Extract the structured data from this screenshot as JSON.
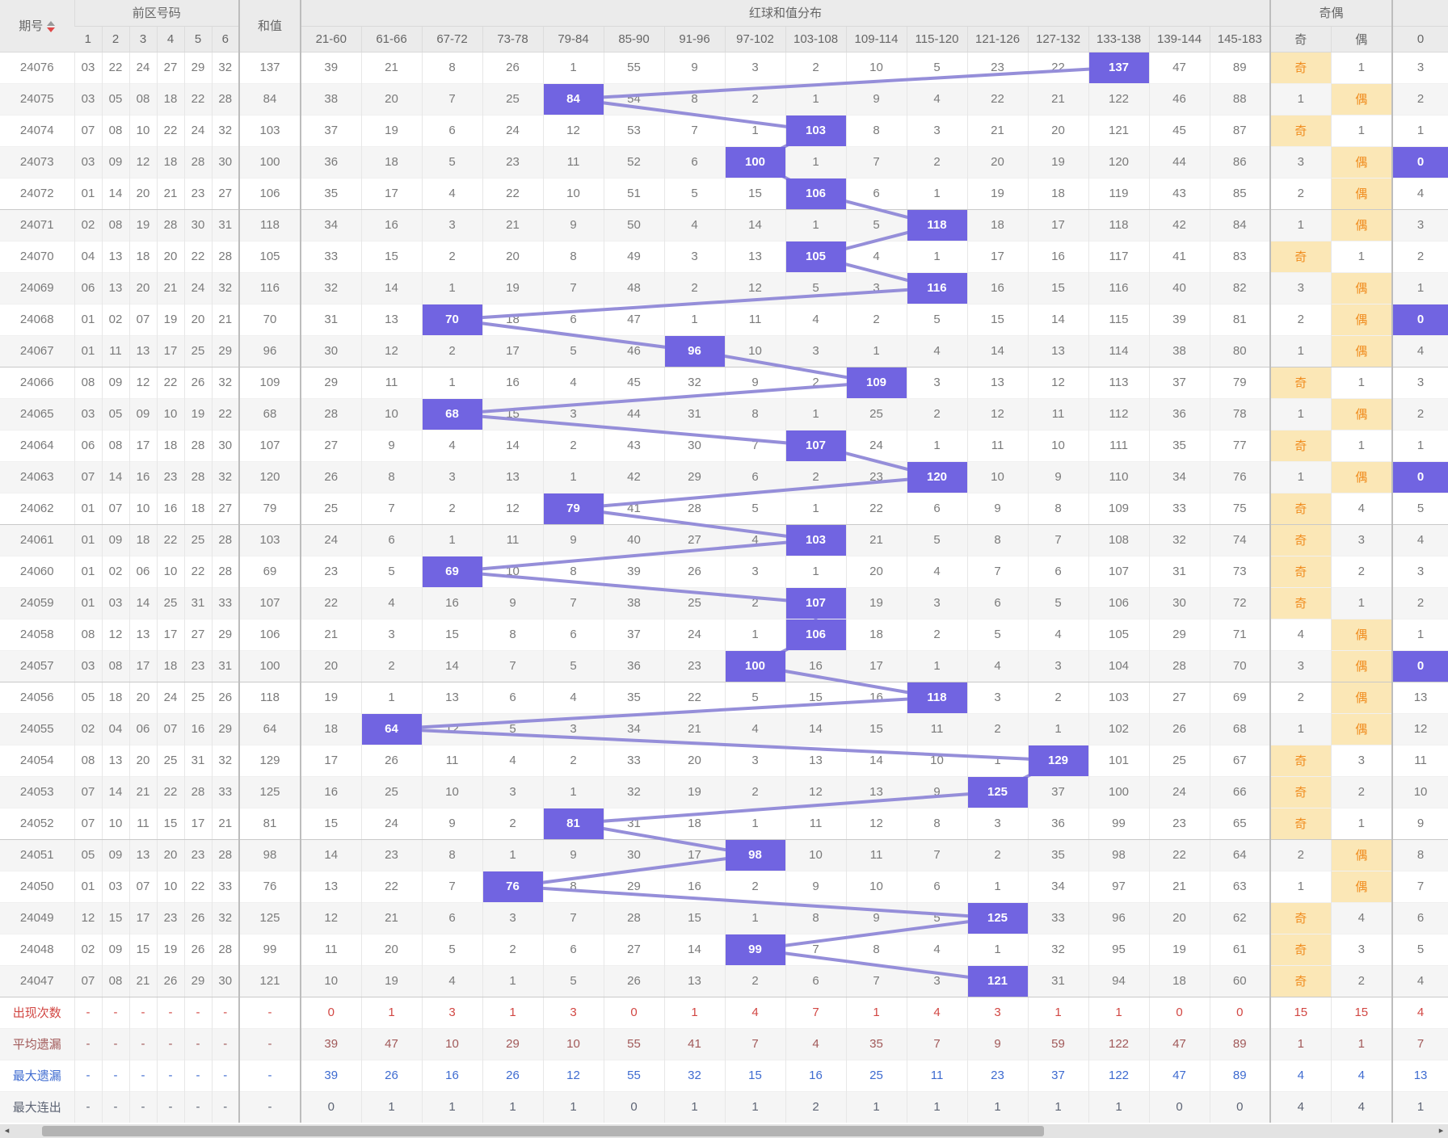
{
  "header": {
    "issue_col": "期号",
    "front_group": "前区号码",
    "front_cols": [
      "1",
      "2",
      "3",
      "4",
      "5",
      "6"
    ],
    "sum_col": "和值",
    "dist_group": "红球和值分布",
    "dist_cols": [
      "21-60",
      "61-66",
      "67-72",
      "73-78",
      "79-84",
      "85-90",
      "91-96",
      "97-102",
      "103-108",
      "109-114",
      "115-120",
      "121-126",
      "127-132",
      "133-138",
      "139-144",
      "145-183"
    ],
    "parity_group": "奇偶",
    "parity_cols": [
      "奇",
      "偶"
    ],
    "zero_col": "0"
  },
  "colors": {
    "highlight": "#7164e1",
    "line": "#958ed9",
    "parity_bg": "#fbe7b6",
    "parity_text": "#f08c1e",
    "stat_colors_note": "per-row colors below"
  },
  "rows": [
    {
      "issue": "24076",
      "nums": [
        "03",
        "22",
        "24",
        "27",
        "29",
        "32"
      ],
      "sum": "137",
      "dist": [
        "39",
        "21",
        "8",
        "26",
        "1",
        "55",
        "9",
        "3",
        "2",
        "10",
        "5",
        "23",
        "22",
        "137",
        "47",
        "89"
      ],
      "hl": 13,
      "odd": "奇",
      "even": "1",
      "parity": "odd",
      "zero": "3",
      "zero_hl": false
    },
    {
      "issue": "24075",
      "nums": [
        "03",
        "05",
        "08",
        "18",
        "22",
        "28"
      ],
      "sum": "84",
      "dist": [
        "38",
        "20",
        "7",
        "25",
        "84",
        "54",
        "8",
        "2",
        "1",
        "9",
        "4",
        "22",
        "21",
        "122",
        "46",
        "88"
      ],
      "hl": 4,
      "odd": "1",
      "even": "偶",
      "parity": "even",
      "zero": "2",
      "zero_hl": false
    },
    {
      "issue": "24074",
      "nums": [
        "07",
        "08",
        "10",
        "22",
        "24",
        "32"
      ],
      "sum": "103",
      "dist": [
        "37",
        "19",
        "6",
        "24",
        "12",
        "53",
        "7",
        "1",
        "103",
        "8",
        "3",
        "21",
        "20",
        "121",
        "45",
        "87"
      ],
      "hl": 8,
      "odd": "奇",
      "even": "1",
      "parity": "odd",
      "zero": "1",
      "zero_hl": false
    },
    {
      "issue": "24073",
      "nums": [
        "03",
        "09",
        "12",
        "18",
        "28",
        "30"
      ],
      "sum": "100",
      "dist": [
        "36",
        "18",
        "5",
        "23",
        "11",
        "52",
        "6",
        "100",
        "1",
        "7",
        "2",
        "20",
        "19",
        "120",
        "44",
        "86"
      ],
      "hl": 7,
      "odd": "3",
      "even": "偶",
      "parity": "even",
      "zero": "0",
      "zero_hl": true
    },
    {
      "issue": "24072",
      "nums": [
        "01",
        "14",
        "20",
        "21",
        "23",
        "27"
      ],
      "sum": "106",
      "dist": [
        "35",
        "17",
        "4",
        "22",
        "10",
        "51",
        "5",
        "15",
        "106",
        "6",
        "1",
        "19",
        "18",
        "119",
        "43",
        "85"
      ],
      "hl": 8,
      "odd": "2",
      "even": "偶",
      "parity": "even",
      "zero": "4",
      "zero_hl": false
    },
    {
      "issue": "24071",
      "nums": [
        "02",
        "08",
        "19",
        "28",
        "30",
        "31"
      ],
      "sum": "118",
      "dist": [
        "34",
        "16",
        "3",
        "21",
        "9",
        "50",
        "4",
        "14",
        "1",
        "5",
        "118",
        "18",
        "17",
        "118",
        "42",
        "84"
      ],
      "hl": 10,
      "odd": "1",
      "even": "偶",
      "parity": "even",
      "zero": "3",
      "zero_hl": false
    },
    {
      "issue": "24070",
      "nums": [
        "04",
        "13",
        "18",
        "20",
        "22",
        "28"
      ],
      "sum": "105",
      "dist": [
        "33",
        "15",
        "2",
        "20",
        "8",
        "49",
        "3",
        "13",
        "105",
        "4",
        "1",
        "17",
        "16",
        "117",
        "41",
        "83"
      ],
      "hl": 8,
      "odd": "奇",
      "even": "1",
      "parity": "odd",
      "zero": "2",
      "zero_hl": false
    },
    {
      "issue": "24069",
      "nums": [
        "06",
        "13",
        "20",
        "21",
        "24",
        "32"
      ],
      "sum": "116",
      "dist": [
        "32",
        "14",
        "1",
        "19",
        "7",
        "48",
        "2",
        "12",
        "5",
        "3",
        "116",
        "16",
        "15",
        "116",
        "40",
        "82"
      ],
      "hl": 10,
      "odd": "3",
      "even": "偶",
      "parity": "even",
      "zero": "1",
      "zero_hl": false
    },
    {
      "issue": "24068",
      "nums": [
        "01",
        "02",
        "07",
        "19",
        "20",
        "21"
      ],
      "sum": "70",
      "dist": [
        "31",
        "13",
        "70",
        "18",
        "6",
        "47",
        "1",
        "11",
        "4",
        "2",
        "5",
        "15",
        "14",
        "115",
        "39",
        "81"
      ],
      "hl": 2,
      "odd": "2",
      "even": "偶",
      "parity": "even",
      "zero": "0",
      "zero_hl": true
    },
    {
      "issue": "24067",
      "nums": [
        "01",
        "11",
        "13",
        "17",
        "25",
        "29"
      ],
      "sum": "96",
      "dist": [
        "30",
        "12",
        "2",
        "17",
        "5",
        "46",
        "96",
        "10",
        "3",
        "1",
        "4",
        "14",
        "13",
        "114",
        "38",
        "80"
      ],
      "hl": 6,
      "odd": "1",
      "even": "偶",
      "parity": "even",
      "zero": "4",
      "zero_hl": false
    },
    {
      "issue": "24066",
      "nums": [
        "08",
        "09",
        "12",
        "22",
        "26",
        "32"
      ],
      "sum": "109",
      "dist": [
        "29",
        "11",
        "1",
        "16",
        "4",
        "45",
        "32",
        "9",
        "2",
        "109",
        "3",
        "13",
        "12",
        "113",
        "37",
        "79"
      ],
      "hl": 9,
      "odd": "奇",
      "even": "1",
      "parity": "odd",
      "zero": "3",
      "zero_hl": false
    },
    {
      "issue": "24065",
      "nums": [
        "03",
        "05",
        "09",
        "10",
        "19",
        "22"
      ],
      "sum": "68",
      "dist": [
        "28",
        "10",
        "68",
        "15",
        "3",
        "44",
        "31",
        "8",
        "1",
        "25",
        "2",
        "12",
        "11",
        "112",
        "36",
        "78"
      ],
      "hl": 2,
      "odd": "1",
      "even": "偶",
      "parity": "even",
      "zero": "2",
      "zero_hl": false
    },
    {
      "issue": "24064",
      "nums": [
        "06",
        "08",
        "17",
        "18",
        "28",
        "30"
      ],
      "sum": "107",
      "dist": [
        "27",
        "9",
        "4",
        "14",
        "2",
        "43",
        "30",
        "7",
        "107",
        "24",
        "1",
        "11",
        "10",
        "111",
        "35",
        "77"
      ],
      "hl": 8,
      "odd": "奇",
      "even": "1",
      "parity": "odd",
      "zero": "1",
      "zero_hl": false
    },
    {
      "issue": "24063",
      "nums": [
        "07",
        "14",
        "16",
        "23",
        "28",
        "32"
      ],
      "sum": "120",
      "dist": [
        "26",
        "8",
        "3",
        "13",
        "1",
        "42",
        "29",
        "6",
        "2",
        "23",
        "120",
        "10",
        "9",
        "110",
        "34",
        "76"
      ],
      "hl": 10,
      "odd": "1",
      "even": "偶",
      "parity": "even",
      "zero": "0",
      "zero_hl": true
    },
    {
      "issue": "24062",
      "nums": [
        "01",
        "07",
        "10",
        "16",
        "18",
        "27"
      ],
      "sum": "79",
      "dist": [
        "25",
        "7",
        "2",
        "12",
        "79",
        "41",
        "28",
        "5",
        "1",
        "22",
        "6",
        "9",
        "8",
        "109",
        "33",
        "75"
      ],
      "hl": 4,
      "odd": "奇",
      "even": "4",
      "parity": "odd",
      "zero": "5",
      "zero_hl": false
    },
    {
      "issue": "24061",
      "nums": [
        "01",
        "09",
        "18",
        "22",
        "25",
        "28"
      ],
      "sum": "103",
      "dist": [
        "24",
        "6",
        "1",
        "11",
        "9",
        "40",
        "27",
        "4",
        "103",
        "21",
        "5",
        "8",
        "7",
        "108",
        "32",
        "74"
      ],
      "hl": 8,
      "odd": "奇",
      "even": "3",
      "parity": "odd",
      "zero": "4",
      "zero_hl": false
    },
    {
      "issue": "24060",
      "nums": [
        "01",
        "02",
        "06",
        "10",
        "22",
        "28"
      ],
      "sum": "69",
      "dist": [
        "23",
        "5",
        "69",
        "10",
        "8",
        "39",
        "26",
        "3",
        "1",
        "20",
        "4",
        "7",
        "6",
        "107",
        "31",
        "73"
      ],
      "hl": 2,
      "odd": "奇",
      "even": "2",
      "parity": "odd",
      "zero": "3",
      "zero_hl": false
    },
    {
      "issue": "24059",
      "nums": [
        "01",
        "03",
        "14",
        "25",
        "31",
        "33"
      ],
      "sum": "107",
      "dist": [
        "22",
        "4",
        "16",
        "9",
        "7",
        "38",
        "25",
        "2",
        "107",
        "19",
        "3",
        "6",
        "5",
        "106",
        "30",
        "72"
      ],
      "hl": 8,
      "odd": "奇",
      "even": "1",
      "parity": "odd",
      "zero": "2",
      "zero_hl": false
    },
    {
      "issue": "24058",
      "nums": [
        "08",
        "12",
        "13",
        "17",
        "27",
        "29"
      ],
      "sum": "106",
      "dist": [
        "21",
        "3",
        "15",
        "8",
        "6",
        "37",
        "24",
        "1",
        "106",
        "18",
        "2",
        "5",
        "4",
        "105",
        "29",
        "71"
      ],
      "hl": 8,
      "odd": "4",
      "even": "偶",
      "parity": "even",
      "zero": "1",
      "zero_hl": false
    },
    {
      "issue": "24057",
      "nums": [
        "03",
        "08",
        "17",
        "18",
        "23",
        "31"
      ],
      "sum": "100",
      "dist": [
        "20",
        "2",
        "14",
        "7",
        "5",
        "36",
        "23",
        "100",
        "16",
        "17",
        "1",
        "4",
        "3",
        "104",
        "28",
        "70"
      ],
      "hl": 7,
      "odd": "3",
      "even": "偶",
      "parity": "even",
      "zero": "0",
      "zero_hl": true
    },
    {
      "issue": "24056",
      "nums": [
        "05",
        "18",
        "20",
        "24",
        "25",
        "26"
      ],
      "sum": "118",
      "dist": [
        "19",
        "1",
        "13",
        "6",
        "4",
        "35",
        "22",
        "5",
        "15",
        "16",
        "118",
        "3",
        "2",
        "103",
        "27",
        "69"
      ],
      "hl": 10,
      "odd": "2",
      "even": "偶",
      "parity": "even",
      "zero": "13",
      "zero_hl": false
    },
    {
      "issue": "24055",
      "nums": [
        "02",
        "04",
        "06",
        "07",
        "16",
        "29"
      ],
      "sum": "64",
      "dist": [
        "18",
        "64",
        "12",
        "5",
        "3",
        "34",
        "21",
        "4",
        "14",
        "15",
        "11",
        "2",
        "1",
        "102",
        "26",
        "68"
      ],
      "hl": 1,
      "odd": "1",
      "even": "偶",
      "parity": "even",
      "zero": "12",
      "zero_hl": false
    },
    {
      "issue": "24054",
      "nums": [
        "08",
        "13",
        "20",
        "25",
        "31",
        "32"
      ],
      "sum": "129",
      "dist": [
        "17",
        "26",
        "11",
        "4",
        "2",
        "33",
        "20",
        "3",
        "13",
        "14",
        "10",
        "1",
        "129",
        "101",
        "25",
        "67"
      ],
      "hl": 12,
      "odd": "奇",
      "even": "3",
      "parity": "odd",
      "zero": "11",
      "zero_hl": false
    },
    {
      "issue": "24053",
      "nums": [
        "07",
        "14",
        "21",
        "22",
        "28",
        "33"
      ],
      "sum": "125",
      "dist": [
        "16",
        "25",
        "10",
        "3",
        "1",
        "32",
        "19",
        "2",
        "12",
        "13",
        "9",
        "125",
        "37",
        "100",
        "24",
        "66"
      ],
      "hl": 11,
      "odd": "奇",
      "even": "2",
      "parity": "odd",
      "zero": "10",
      "zero_hl": false
    },
    {
      "issue": "24052",
      "nums": [
        "07",
        "10",
        "11",
        "15",
        "17",
        "21"
      ],
      "sum": "81",
      "dist": [
        "15",
        "24",
        "9",
        "2",
        "81",
        "31",
        "18",
        "1",
        "11",
        "12",
        "8",
        "3",
        "36",
        "99",
        "23",
        "65"
      ],
      "hl": 4,
      "odd": "奇",
      "even": "1",
      "parity": "odd",
      "zero": "9",
      "zero_hl": false
    },
    {
      "issue": "24051",
      "nums": [
        "05",
        "09",
        "13",
        "20",
        "23",
        "28"
      ],
      "sum": "98",
      "dist": [
        "14",
        "23",
        "8",
        "1",
        "9",
        "30",
        "17",
        "98",
        "10",
        "11",
        "7",
        "2",
        "35",
        "98",
        "22",
        "64"
      ],
      "hl": 7,
      "odd": "2",
      "even": "偶",
      "parity": "even",
      "zero": "8",
      "zero_hl": false
    },
    {
      "issue": "24050",
      "nums": [
        "01",
        "03",
        "07",
        "10",
        "22",
        "33"
      ],
      "sum": "76",
      "dist": [
        "13",
        "22",
        "7",
        "76",
        "8",
        "29",
        "16",
        "2",
        "9",
        "10",
        "6",
        "1",
        "34",
        "97",
        "21",
        "63"
      ],
      "hl": 3,
      "odd": "1",
      "even": "偶",
      "parity": "even",
      "zero": "7",
      "zero_hl": false
    },
    {
      "issue": "24049",
      "nums": [
        "12",
        "15",
        "17",
        "23",
        "26",
        "32"
      ],
      "sum": "125",
      "dist": [
        "12",
        "21",
        "6",
        "3",
        "7",
        "28",
        "15",
        "1",
        "8",
        "9",
        "5",
        "125",
        "33",
        "96",
        "20",
        "62"
      ],
      "hl": 11,
      "odd": "奇",
      "even": "4",
      "parity": "odd",
      "zero": "6",
      "zero_hl": false
    },
    {
      "issue": "24048",
      "nums": [
        "02",
        "09",
        "15",
        "19",
        "26",
        "28"
      ],
      "sum": "99",
      "dist": [
        "11",
        "20",
        "5",
        "2",
        "6",
        "27",
        "14",
        "99",
        "7",
        "8",
        "4",
        "1",
        "32",
        "95",
        "19",
        "61"
      ],
      "hl": 7,
      "odd": "奇",
      "even": "3",
      "parity": "odd",
      "zero": "5",
      "zero_hl": false
    },
    {
      "issue": "24047",
      "nums": [
        "07",
        "08",
        "21",
        "26",
        "29",
        "30"
      ],
      "sum": "121",
      "dist": [
        "10",
        "19",
        "4",
        "1",
        "5",
        "26",
        "13",
        "2",
        "6",
        "7",
        "3",
        "121",
        "31",
        "94",
        "18",
        "60"
      ],
      "hl": 11,
      "odd": "奇",
      "even": "2",
      "parity": "odd",
      "zero": "4",
      "zero_hl": false
    }
  ],
  "stats": [
    {
      "label": "出现次数",
      "color": "#d24743",
      "front": [
        "-",
        "-",
        "-",
        "-",
        "-",
        "-"
      ],
      "sum": "-",
      "dist": [
        "0",
        "1",
        "3",
        "1",
        "3",
        "0",
        "1",
        "4",
        "7",
        "1",
        "4",
        "3",
        "1",
        "1",
        "0",
        "0"
      ],
      "odd": "15",
      "even": "15",
      "zero": "4"
    },
    {
      "label": "平均遗漏",
      "color": "#a15959",
      "front": [
        "-",
        "-",
        "-",
        "-",
        "-",
        "-"
      ],
      "sum": "-",
      "dist": [
        "39",
        "47",
        "10",
        "29",
        "10",
        "55",
        "41",
        "7",
        "4",
        "35",
        "7",
        "9",
        "59",
        "122",
        "47",
        "89"
      ],
      "odd": "1",
      "even": "1",
      "zero": "7"
    },
    {
      "label": "最大遗漏",
      "color": "#3e6bd0",
      "front": [
        "-",
        "-",
        "-",
        "-",
        "-",
        "-"
      ],
      "sum": "-",
      "dist": [
        "39",
        "26",
        "16",
        "26",
        "12",
        "55",
        "32",
        "15",
        "16",
        "25",
        "11",
        "23",
        "37",
        "122",
        "47",
        "89"
      ],
      "odd": "4",
      "even": "4",
      "zero": "13"
    },
    {
      "label": "最大连出",
      "color": "#5d6474",
      "front": [
        "-",
        "-",
        "-",
        "-",
        "-",
        "-"
      ],
      "sum": "-",
      "dist": [
        "0",
        "1",
        "1",
        "1",
        "1",
        "0",
        "1",
        "1",
        "2",
        "1",
        "1",
        "1",
        "1",
        "1",
        "0",
        "0"
      ],
      "odd": "4",
      "even": "4",
      "zero": "1"
    }
  ]
}
